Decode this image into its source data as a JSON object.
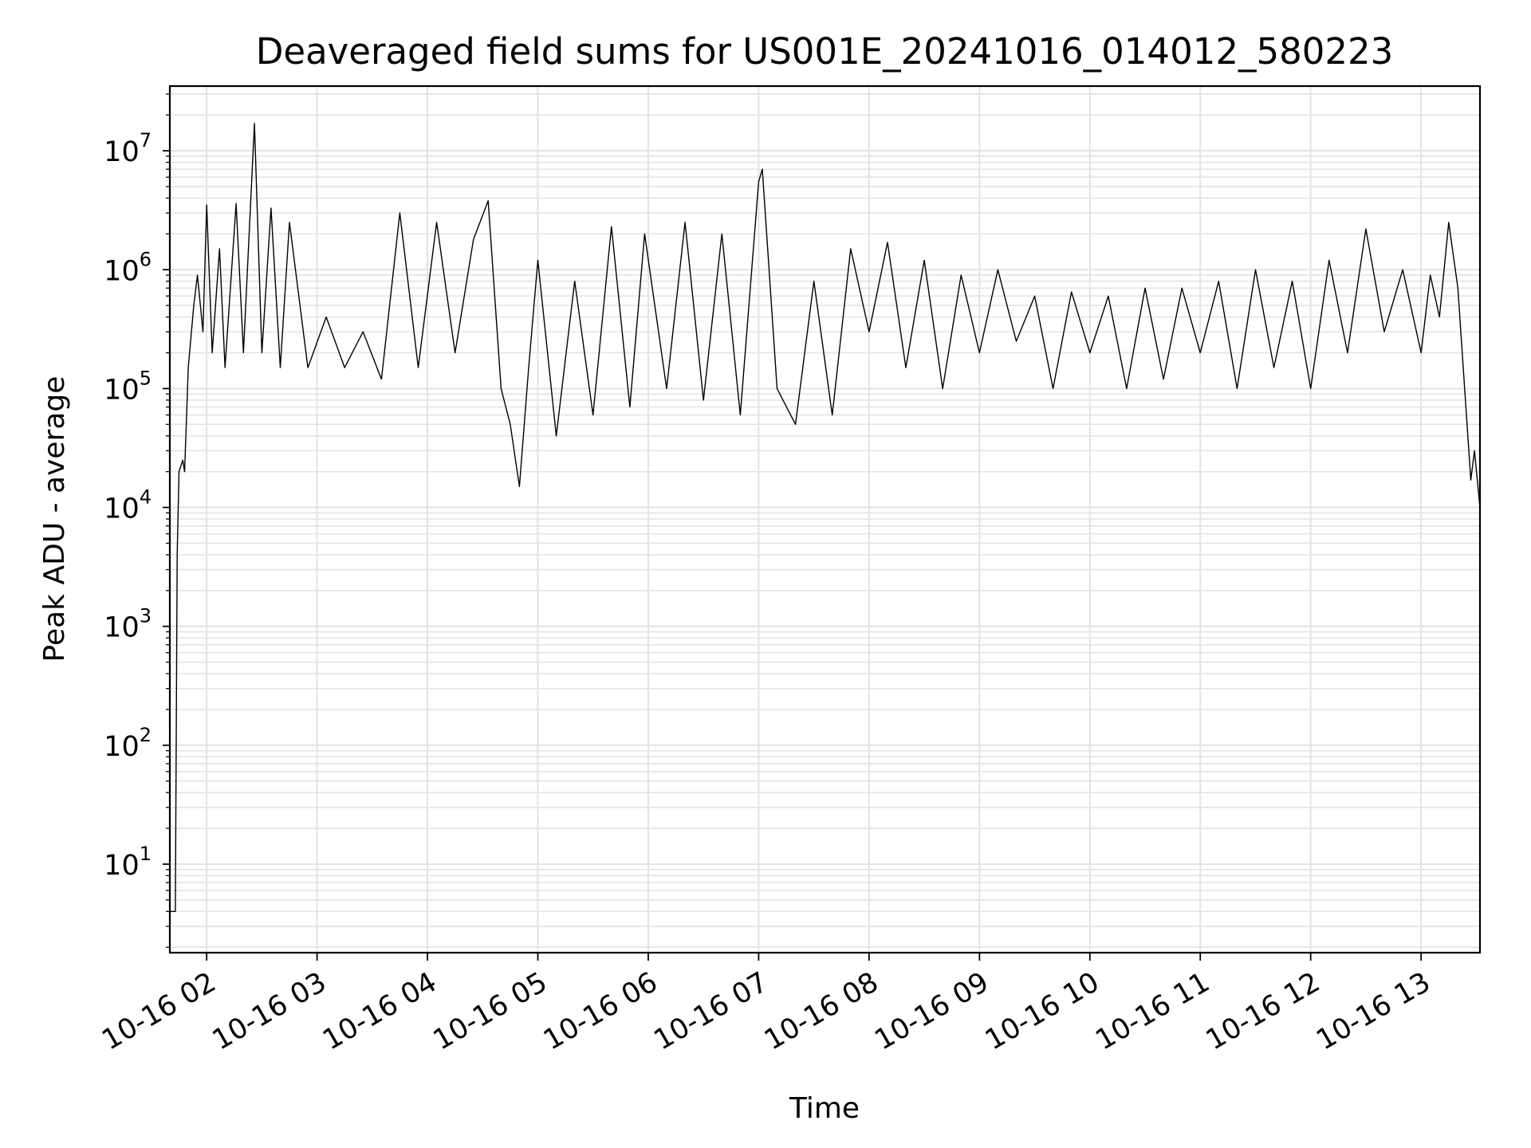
{
  "chart_data": {
    "type": "line",
    "title": "Deaveraged field sums for US001E_20241016_014012_580223",
    "xlabel": "Time",
    "ylabel": "Peak ADU - average",
    "yscale": "log",
    "ylim": [
      1.8,
      35000000
    ],
    "xlim": [
      "2024-10-16 01:40",
      "2024-10-16 13:32"
    ],
    "grid": true,
    "x_ticks": [
      {
        "time": "2024-10-16 02:00",
        "label": "10-16 02"
      },
      {
        "time": "2024-10-16 03:00",
        "label": "10-16 03"
      },
      {
        "time": "2024-10-16 04:00",
        "label": "10-16 04"
      },
      {
        "time": "2024-10-16 05:00",
        "label": "10-16 05"
      },
      {
        "time": "2024-10-16 06:00",
        "label": "10-16 06"
      },
      {
        "time": "2024-10-16 07:00",
        "label": "10-16 07"
      },
      {
        "time": "2024-10-16 08:00",
        "label": "10-16 08"
      },
      {
        "time": "2024-10-16 09:00",
        "label": "10-16 09"
      },
      {
        "time": "2024-10-16 10:00",
        "label": "10-16 10"
      },
      {
        "time": "2024-10-16 11:00",
        "label": "10-16 11"
      },
      {
        "time": "2024-10-16 12:00",
        "label": "10-16 12"
      },
      {
        "time": "2024-10-16 13:00",
        "label": "10-16 13"
      }
    ],
    "y_ticks": [
      {
        "value": 10,
        "base": "10",
        "exp": "1"
      },
      {
        "value": 100,
        "base": "10",
        "exp": "2"
      },
      {
        "value": 1000,
        "base": "10",
        "exp": "3"
      },
      {
        "value": 10000,
        "base": "10",
        "exp": "4"
      },
      {
        "value": 100000,
        "base": "10",
        "exp": "5"
      },
      {
        "value": 1000000,
        "base": "10",
        "exp": "6"
      },
      {
        "value": 10000000,
        "base": "10",
        "exp": "7"
      }
    ],
    "series": [
      {
        "color": "#000000",
        "points": [
          [
            "2024-10-16 01:40",
            4
          ],
          [
            "2024-10-16 01:43",
            4
          ],
          [
            "2024-10-16 01:44",
            4000
          ],
          [
            "2024-10-16 01:45",
            20000
          ],
          [
            "2024-10-16 01:47",
            25000
          ],
          [
            "2024-10-16 01:48",
            20000
          ],
          [
            "2024-10-16 01:50",
            150000
          ],
          [
            "2024-10-16 01:53",
            500000
          ],
          [
            "2024-10-16 01:55",
            900000
          ],
          [
            "2024-10-16 01:58",
            300000
          ],
          [
            "2024-10-16 02:00",
            3500000
          ],
          [
            "2024-10-16 02:03",
            200000
          ],
          [
            "2024-10-16 02:07",
            1500000
          ],
          [
            "2024-10-16 02:10",
            150000
          ],
          [
            "2024-10-16 02:16",
            3600000
          ],
          [
            "2024-10-16 02:20",
            200000
          ],
          [
            "2024-10-16 02:26",
            17000000
          ],
          [
            "2024-10-16 02:30",
            200000
          ],
          [
            "2024-10-16 02:35",
            3300000
          ],
          [
            "2024-10-16 02:40",
            150000
          ],
          [
            "2024-10-16 02:45",
            2500000
          ],
          [
            "2024-10-16 02:55",
            150000
          ],
          [
            "2024-10-16 03:05",
            400000
          ],
          [
            "2024-10-16 03:15",
            150000
          ],
          [
            "2024-10-16 03:25",
            300000
          ],
          [
            "2024-10-16 03:35",
            120000
          ],
          [
            "2024-10-16 03:45",
            3000000
          ],
          [
            "2024-10-16 03:55",
            150000
          ],
          [
            "2024-10-16 04:05",
            2500000
          ],
          [
            "2024-10-16 04:15",
            200000
          ],
          [
            "2024-10-16 04:25",
            1800000
          ],
          [
            "2024-10-16 04:33",
            3800000
          ],
          [
            "2024-10-16 04:40",
            100000
          ],
          [
            "2024-10-16 04:45",
            50000
          ],
          [
            "2024-10-16 04:50",
            15000
          ],
          [
            "2024-10-16 04:55",
            150000
          ],
          [
            "2024-10-16 05:00",
            1200000
          ],
          [
            "2024-10-16 05:10",
            40000
          ],
          [
            "2024-10-16 05:20",
            800000
          ],
          [
            "2024-10-16 05:30",
            60000
          ],
          [
            "2024-10-16 05:40",
            2300000
          ],
          [
            "2024-10-16 05:50",
            70000
          ],
          [
            "2024-10-16 05:58",
            2000000
          ],
          [
            "2024-10-16 06:10",
            100000
          ],
          [
            "2024-10-16 06:20",
            2500000
          ],
          [
            "2024-10-16 06:30",
            80000
          ],
          [
            "2024-10-16 06:40",
            2000000
          ],
          [
            "2024-10-16 06:50",
            60000
          ],
          [
            "2024-10-16 07:00",
            5500000
          ],
          [
            "2024-10-16 07:02",
            7000000
          ],
          [
            "2024-10-16 07:10",
            100000
          ],
          [
            "2024-10-16 07:20",
            50000
          ],
          [
            "2024-10-16 07:30",
            800000
          ],
          [
            "2024-10-16 07:40",
            60000
          ],
          [
            "2024-10-16 07:50",
            1500000
          ],
          [
            "2024-10-16 08:00",
            300000
          ],
          [
            "2024-10-16 08:10",
            1700000
          ],
          [
            "2024-10-16 08:20",
            150000
          ],
          [
            "2024-10-16 08:30",
            1200000
          ],
          [
            "2024-10-16 08:40",
            100000
          ],
          [
            "2024-10-16 08:50",
            900000
          ],
          [
            "2024-10-16 09:00",
            200000
          ],
          [
            "2024-10-16 09:10",
            1000000
          ],
          [
            "2024-10-16 09:20",
            250000
          ],
          [
            "2024-10-16 09:30",
            600000
          ],
          [
            "2024-10-16 09:40",
            100000
          ],
          [
            "2024-10-16 09:50",
            650000
          ],
          [
            "2024-10-16 10:00",
            200000
          ],
          [
            "2024-10-16 10:10",
            600000
          ],
          [
            "2024-10-16 10:20",
            100000
          ],
          [
            "2024-10-16 10:30",
            700000
          ],
          [
            "2024-10-16 10:40",
            120000
          ],
          [
            "2024-10-16 10:50",
            700000
          ],
          [
            "2024-10-16 11:00",
            200000
          ],
          [
            "2024-10-16 11:10",
            800000
          ],
          [
            "2024-10-16 11:20",
            100000
          ],
          [
            "2024-10-16 11:30",
            1000000
          ],
          [
            "2024-10-16 11:40",
            150000
          ],
          [
            "2024-10-16 11:50",
            800000
          ],
          [
            "2024-10-16 12:00",
            100000
          ],
          [
            "2024-10-16 12:10",
            1200000
          ],
          [
            "2024-10-16 12:20",
            200000
          ],
          [
            "2024-10-16 12:30",
            2200000
          ],
          [
            "2024-10-16 12:40",
            300000
          ],
          [
            "2024-10-16 12:50",
            1000000
          ],
          [
            "2024-10-16 13:00",
            200000
          ],
          [
            "2024-10-16 13:05",
            900000
          ],
          [
            "2024-10-16 13:10",
            400000
          ],
          [
            "2024-10-16 13:15",
            2500000
          ],
          [
            "2024-10-16 13:20",
            700000
          ],
          [
            "2024-10-16 13:25",
            50000
          ],
          [
            "2024-10-16 13:27",
            17000
          ],
          [
            "2024-10-16 13:29",
            30000
          ],
          [
            "2024-10-16 13:32",
            10000
          ]
        ]
      }
    ]
  }
}
